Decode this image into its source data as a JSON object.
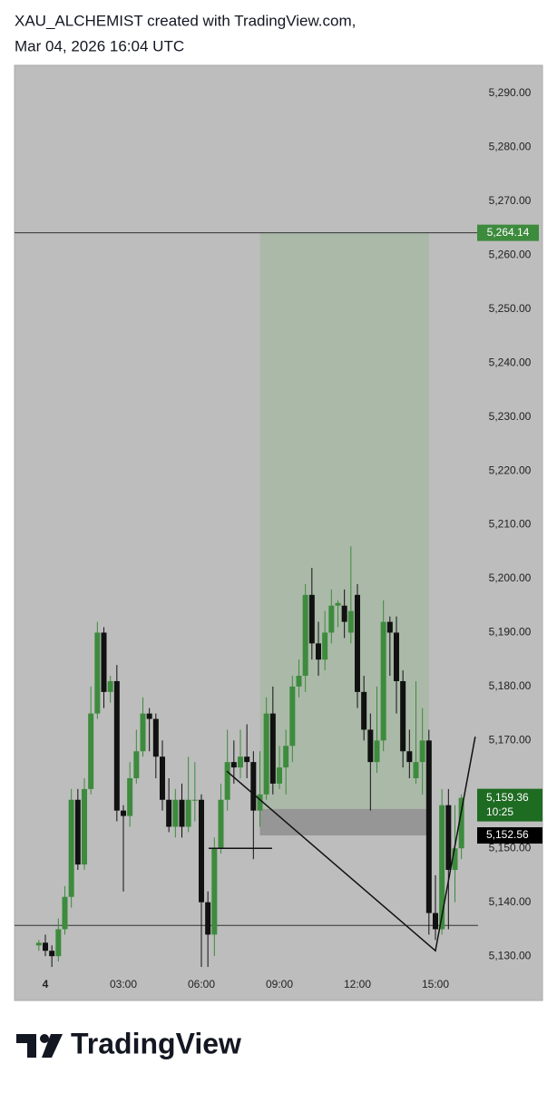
{
  "header": {
    "title": "XAU_ALCHEMIST created with TradingView.com,",
    "subtitle": "Mar 04, 2026 16:04 UTC"
  },
  "chart_data": {
    "type": "candlestick",
    "x": [
      -0.25,
      0,
      0.25,
      0.5,
      0.75,
      1,
      1.25,
      1.5,
      1.75,
      2,
      2.25,
      2.5,
      2.75,
      3,
      3.25,
      3.5,
      3.75,
      4,
      4.25,
      4.5,
      4.75,
      5,
      5.25,
      5.5,
      5.75,
      6,
      6.25,
      6.5,
      6.75,
      7,
      7.25,
      7.5,
      7.75,
      8,
      8.25,
      8.5,
      8.75,
      9,
      9.25,
      9.5,
      9.75,
      10,
      10.25,
      10.5,
      10.75,
      11,
      11.25,
      11.5,
      11.75,
      12,
      12.25,
      12.5,
      12.75,
      13,
      13.25,
      13.5,
      13.75,
      14,
      14.25,
      14.5,
      14.75,
      15,
      15.25,
      15.5,
      15.75,
      16
    ],
    "open": [
      5132,
      5132.5,
      5131,
      5130,
      5135,
      5141,
      5159,
      5147,
      5161,
      5175,
      5190,
      5179,
      5181,
      5157,
      5156,
      5163,
      5168,
      5175,
      5174,
      5167,
      5159,
      5154,
      5159,
      5154,
      5159,
      5159,
      5140,
      5134,
      5150,
      5159,
      5166,
      5165,
      5167,
      5166,
      5157,
      5160,
      5175,
      5162,
      5165,
      5169,
      5180,
      5182,
      5197,
      5188,
      5185,
      5190,
      5195,
      5195,
      5190,
      5197,
      5179,
      5172,
      5166,
      5170,
      5192,
      5190,
      5181,
      5168,
      5163,
      5166,
      5170,
      5138,
      5135,
      5158,
      5146,
      5150
    ],
    "high": [
      5133,
      5134,
      5132,
      5137,
      5143,
      5161,
      5161,
      5163,
      5180,
      5192,
      5191,
      5182,
      5184,
      5158,
      5166,
      5172,
      5178,
      5176,
      5175,
      5170,
      5163,
      5161,
      5162,
      5167,
      5166,
      5160,
      5142,
      5152,
      5162,
      5172,
      5170,
      5172,
      5173,
      5168,
      5168,
      5178,
      5180,
      5169,
      5172,
      5182,
      5185,
      5199,
      5202,
      5192,
      5194,
      5198,
      5196,
      5198,
      5206,
      5199,
      5182,
      5175,
      5180,
      5196,
      5193,
      5193,
      5183,
      5172,
      5181,
      5176,
      5172,
      5145,
      5161,
      5161,
      5158,
      5160
    ],
    "low": [
      5131,
      5130,
      5128,
      5129,
      5134,
      5139,
      5146,
      5146,
      5160,
      5174,
      5176,
      5177,
      5155,
      5142,
      5154,
      5162,
      5167,
      5168,
      5163,
      5157,
      5153,
      5152,
      5152,
      5153,
      5155,
      5128,
      5128,
      5130,
      5149,
      5157,
      5162,
      5163,
      5163,
      5148,
      5154,
      5159,
      5160,
      5161,
      5160,
      5166,
      5178,
      5179,
      5185,
      5182,
      5183,
      5188,
      5191,
      5189,
      5188,
      5176,
      5170,
      5157,
      5164,
      5168,
      5182,
      5175,
      5165,
      5163,
      5162,
      5160,
      5134,
      5133,
      5134,
      5135,
      5140,
      5148
    ],
    "close": [
      5132.5,
      5131,
      5130,
      5135,
      5141,
      5159,
      5147,
      5161,
      5175,
      5190,
      5179,
      5181,
      5157,
      5156,
      5163,
      5168,
      5175,
      5174,
      5167,
      5159,
      5154,
      5159,
      5154,
      5159,
      5159,
      5140,
      5134,
      5150,
      5159,
      5166,
      5165,
      5167,
      5166,
      5157,
      5160,
      5175,
      5162,
      5165,
      5169,
      5180,
      5182,
      5197,
      5188,
      5185,
      5190,
      5195,
      5195.5,
      5192,
      5194,
      5179,
      5172,
      5166,
      5170,
      5192,
      5190,
      5181,
      5168,
      5166,
      5166,
      5170,
      5138,
      5135,
      5158,
      5146,
      5150,
      5159.36
    ],
    "up_color": "#3d8b3d",
    "down_color": "#111111",
    "xlim": [
      -1.186,
      16.64
    ],
    "xticks": [
      {
        "value": 0,
        "label": "4"
      },
      {
        "value": 3,
        "label": "03:00"
      },
      {
        "value": 6,
        "label": "06:00"
      },
      {
        "value": 9,
        "label": "09:00"
      },
      {
        "value": 12,
        "label": "12:00"
      },
      {
        "value": 15,
        "label": "15:00"
      }
    ],
    "ylim": [
      5127,
      5295.2
    ],
    "yticks": [
      {
        "value": 5130,
        "label": "5,130.00"
      },
      {
        "value": 5140,
        "label": "5,140.00"
      },
      {
        "value": 5150,
        "label": "5,150.00"
      },
      {
        "value": 5160,
        "label": "5,160.00"
      },
      {
        "value": 5170,
        "label": "5,170.00"
      },
      {
        "value": 5180,
        "label": "5,180.00"
      },
      {
        "value": 5190,
        "label": "5,190.00"
      },
      {
        "value": 5200,
        "label": "5,200.00"
      },
      {
        "value": 5210,
        "label": "5,210.00"
      },
      {
        "value": 5220,
        "label": "5,220.00"
      },
      {
        "value": 5230,
        "label": "5,230.00"
      },
      {
        "value": 5240,
        "label": "5,240.00"
      },
      {
        "value": 5250,
        "label": "5,250.00"
      },
      {
        "value": 5260,
        "label": "5,260.00"
      },
      {
        "value": 5270,
        "label": "5,270.00"
      },
      {
        "value": 5280,
        "label": "5,280.00"
      },
      {
        "value": 5290,
        "label": "5,290.00"
      }
    ],
    "grid": false,
    "target_price": {
      "value": 5264.14,
      "label": "5,264.14"
    },
    "support_level": 5135.7,
    "target_zone": {
      "x": [
        8.25,
        14.75
      ],
      "y": [
        5157.3,
        5264.14
      ],
      "color": "#a8b8a6"
    },
    "entry_zone": {
      "x": [
        8.25,
        14.75
      ],
      "y": [
        5152.4,
        5157.3
      ],
      "color": "#8f8f8f"
    },
    "trendline": {
      "x": [
        6.98,
        15.0,
        16.53
      ],
      "y": [
        5164.3,
        5131,
        5170.7
      ]
    },
    "segment": {
      "x": [
        6.28,
        8.72
      ],
      "y": [
        5150,
        5150
      ]
    },
    "last_price": {
      "value": 5159.36,
      "label": "5,159.36"
    },
    "countdown": "10:25",
    "marker_price": {
      "value": 5152.56,
      "label": "5,152.56"
    }
  },
  "footer": {
    "brand": "TradingView"
  }
}
